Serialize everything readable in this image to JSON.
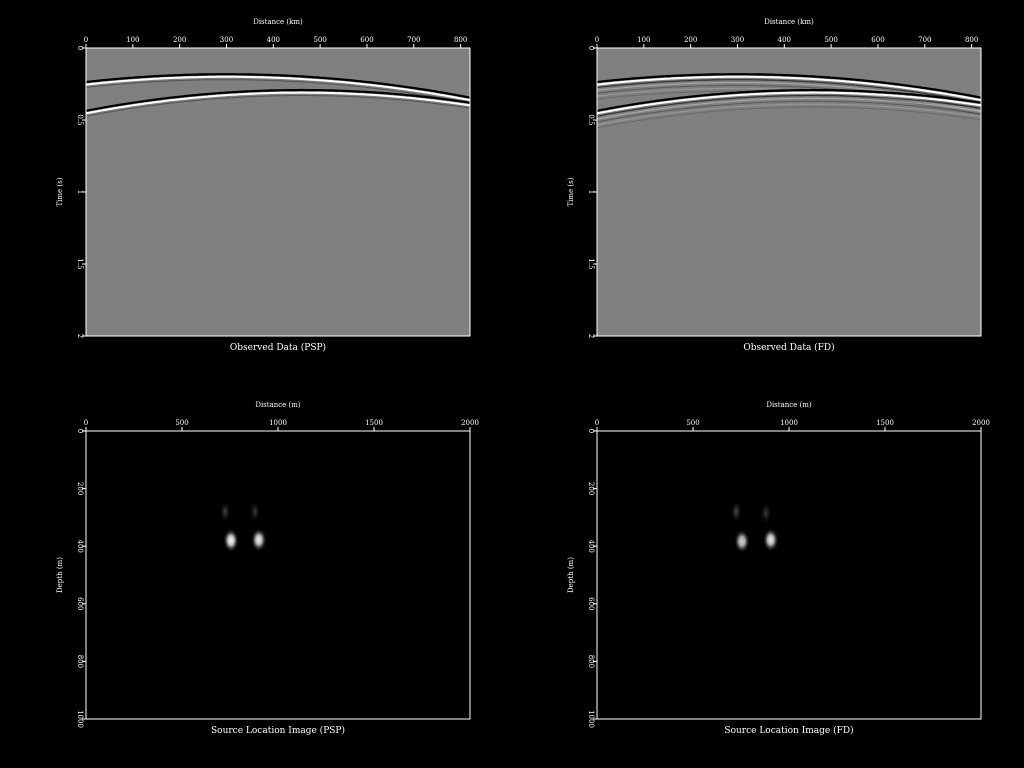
{
  "chart_data": [
    {
      "type": "heatmap",
      "title": "Observed Data (PSP)",
      "xlabel": "Distance (km)",
      "ylabel": "Time (s)",
      "xlim": [
        0,
        820
      ],
      "ylim": [
        0,
        2
      ],
      "x_ticks": [
        "0",
        "100",
        "200",
        "300",
        "400",
        "500",
        "600",
        "700",
        "800"
      ],
      "x_tick_values": [
        0,
        100,
        200,
        300,
        400,
        500,
        600,
        700,
        800
      ],
      "y_ticks": [
        "0",
        "0.5",
        "1",
        "1.5",
        "2"
      ],
      "y_tick_values": [
        0,
        0.5,
        1,
        1.5,
        2
      ],
      "y_reversed": true,
      "x_axis_position": "top",
      "colormap": "gray",
      "background_color": "#808080",
      "events": [
        {
          "name": "event-1",
          "apex_x": 300,
          "apex_t": 0.2,
          "curvature_t_per_km2": 6e-07
        },
        {
          "name": "event-2",
          "apex_x": 460,
          "apex_t": 0.31,
          "curvature_t_per_km2": 6.8e-07
        }
      ],
      "ringing": false
    },
    {
      "type": "heatmap",
      "title": "Observed Data (FD)",
      "xlabel": "Distance (km)",
      "ylabel": "Time (s)",
      "xlim": [
        0,
        820
      ],
      "ylim": [
        0,
        2
      ],
      "x_ticks": [
        "0",
        "100",
        "200",
        "300",
        "400",
        "500",
        "600",
        "700",
        "800"
      ],
      "x_tick_values": [
        0,
        100,
        200,
        300,
        400,
        500,
        600,
        700,
        800
      ],
      "y_ticks": [
        "0",
        "0.5",
        "1",
        "1.5",
        "2"
      ],
      "y_tick_values": [
        0,
        0.5,
        1,
        1.5,
        2
      ],
      "y_reversed": true,
      "x_axis_position": "top",
      "colormap": "gray",
      "background_color": "#808080",
      "events": [
        {
          "name": "event-1",
          "apex_x": 300,
          "apex_t": 0.2,
          "curvature_t_per_km2": 6e-07
        },
        {
          "name": "event-2",
          "apex_x": 460,
          "apex_t": 0.31,
          "curvature_t_per_km2": 6.8e-07
        }
      ],
      "ringing": true
    },
    {
      "type": "heatmap",
      "title": "Source Location Image (PSP)",
      "xlabel": "Distance (m)",
      "ylabel": "Depth (m)",
      "xlim": [
        0,
        2000
      ],
      "ylim": [
        0,
        1000
      ],
      "x_ticks": [
        "0",
        "500",
        "1000",
        "1500",
        "2000"
      ],
      "x_tick_values": [
        0,
        500,
        1000,
        1500,
        2000
      ],
      "y_ticks": [
        "0",
        "200",
        "400",
        "600",
        "800",
        "1000"
      ],
      "y_tick_values": [
        0,
        200,
        400,
        600,
        800,
        1000
      ],
      "y_reversed": true,
      "x_axis_position": "top",
      "colormap": "gray",
      "background_color": "#000000",
      "sources": [
        {
          "x": 755,
          "z": 380,
          "amplitude": 1.0
        },
        {
          "x": 900,
          "z": 378,
          "amplitude": 0.95
        }
      ],
      "ghosts": [
        {
          "x": 725,
          "z": 280,
          "amplitude": 0.18
        },
        {
          "x": 880,
          "z": 280,
          "amplitude": 0.15
        }
      ]
    },
    {
      "type": "heatmap",
      "title": "Source Location Image (FD)",
      "xlabel": "Distance (m)",
      "ylabel": "Depth (m)",
      "xlim": [
        0,
        2000
      ],
      "ylim": [
        0,
        1000
      ],
      "x_ticks": [
        "0",
        "500",
        "1000",
        "1500",
        "2000"
      ],
      "x_tick_values": [
        0,
        500,
        1000,
        1500,
        2000
      ],
      "y_ticks": [
        "0",
        "200",
        "400",
        "600",
        "800",
        "1000"
      ],
      "y_tick_values": [
        0,
        200,
        400,
        600,
        800,
        1000
      ],
      "y_reversed": true,
      "x_axis_position": "top",
      "colormap": "gray",
      "background_color": "#000000",
      "sources": [
        {
          "x": 755,
          "z": 383,
          "amplitude": 0.85
        },
        {
          "x": 905,
          "z": 378,
          "amplitude": 0.95
        }
      ],
      "ghosts": [
        {
          "x": 725,
          "z": 280,
          "amplitude": 0.2
        },
        {
          "x": 880,
          "z": 285,
          "amplitude": 0.15
        }
      ]
    }
  ]
}
